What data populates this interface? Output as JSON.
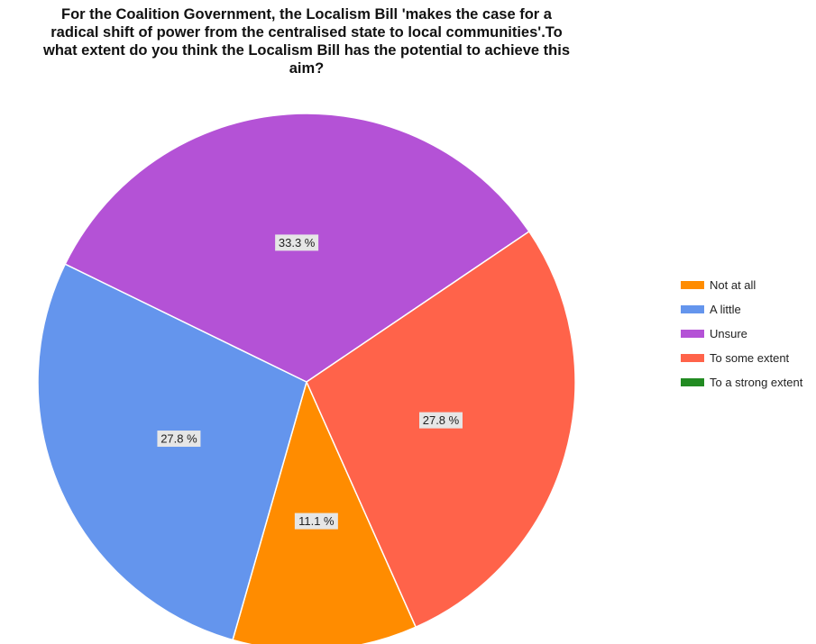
{
  "chart_data": {
    "type": "pie",
    "title_lines": [
      "For the Coalition Government, the Localism Bill 'makes the case for a",
      "radical shift of power from the centralised state to local communities'.To",
      "what extent do you think the Localism Bill has the potential to achieve this",
      "aim?"
    ],
    "slices": [
      {
        "label": "Not at all",
        "value": 11.1,
        "display": "11.1 %",
        "color": "#ff8c00"
      },
      {
        "label": "A little",
        "value": 27.8,
        "display": "27.8 %",
        "color": "#6495ed"
      },
      {
        "label": "Unsure",
        "value": 33.3,
        "display": "33.3 %",
        "color": "#b452d6"
      },
      {
        "label": "To some extent",
        "value": 27.8,
        "display": "27.8 %",
        "color": "#ff634a"
      },
      {
        "label": "To a strong extent",
        "value": 0,
        "display": "",
        "color": "#228b22"
      }
    ],
    "legend_position": "right"
  }
}
